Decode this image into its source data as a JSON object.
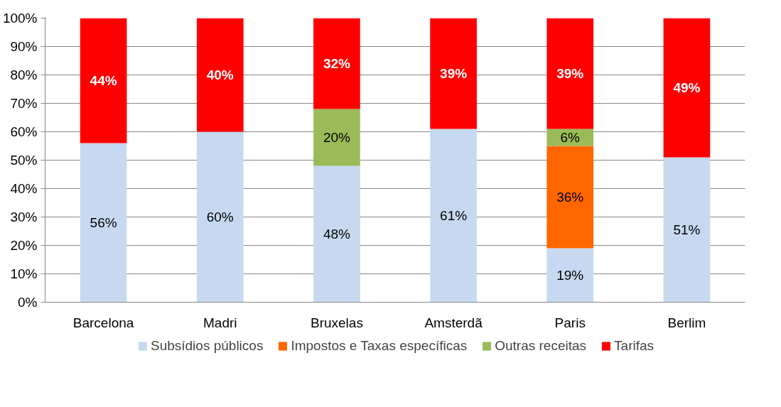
{
  "chart_data": {
    "type": "bar",
    "stacked": true,
    "categories": [
      "Barcelona",
      "Madri",
      "Bruxelas",
      "Amsterdã",
      "Paris",
      "Berlim"
    ],
    "series": [
      {
        "name": "Subsídios públicos",
        "color": "#c6d9f1",
        "values": [
          56,
          60,
          48,
          61,
          19,
          51
        ],
        "value_labels": [
          "56%",
          "60%",
          "48%",
          "61%",
          "19%",
          "51%"
        ]
      },
      {
        "name": "Impostos e Taxas específicas",
        "color": "#ff6600",
        "values": [
          null,
          null,
          null,
          null,
          36,
          null
        ],
        "value_labels": [
          null,
          null,
          null,
          null,
          "36%",
          null
        ]
      },
      {
        "name": "Outras receitas",
        "color": "#9bbb59",
        "values": [
          null,
          null,
          20,
          null,
          6,
          null
        ],
        "value_labels": [
          null,
          null,
          "20%",
          null,
          "6%",
          null
        ]
      },
      {
        "name": "Tarifas",
        "color": "#ff0000",
        "values": [
          44,
          40,
          32,
          39,
          39,
          49
        ],
        "value_labels": [
          "44%",
          "40%",
          "32%",
          "39%",
          "39%",
          "49%"
        ]
      }
    ],
    "ylim": [
      0,
      100
    ],
    "yticks": [
      {
        "value": 0,
        "label": "0%"
      },
      {
        "value": 10,
        "label": "10%"
      },
      {
        "value": 20,
        "label": "20%"
      },
      {
        "value": 30,
        "label": "30%"
      },
      {
        "value": 40,
        "label": "40%"
      },
      {
        "value": 50,
        "label": "50%"
      },
      {
        "value": 60,
        "label": "60%"
      },
      {
        "value": 70,
        "label": "70%"
      },
      {
        "value": 80,
        "label": "80%"
      },
      {
        "value": 90,
        "label": "90%"
      },
      {
        "value": 100,
        "label": "100%"
      }
    ],
    "grid": "y",
    "legend": "bottom"
  }
}
